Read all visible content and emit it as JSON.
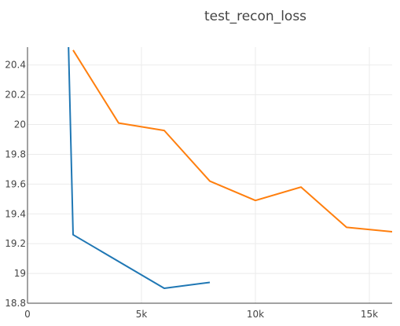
{
  "chart_data": {
    "type": "line",
    "title": "test_recon_loss",
    "xlabel": "",
    "ylabel": "",
    "xlim": [
      0,
      16000
    ],
    "ylim": [
      18.8,
      20.52
    ],
    "grid": true,
    "x_ticks": [
      0,
      5000,
      10000,
      15000
    ],
    "x_tick_labels": [
      "0",
      "5k",
      "10k",
      "15k"
    ],
    "y_ticks": [
      18.8,
      19,
      19.2,
      19.4,
      19.6,
      19.8,
      20,
      20.2,
      20.4
    ],
    "y_tick_labels": [
      "18.8",
      "19",
      "19.2",
      "19.4",
      "19.6",
      "19.8",
      "20",
      "20.2",
      "20.4"
    ],
    "series": [
      {
        "color": "#1f77b4",
        "x": [
          1800,
          2000,
          6000,
          8000
        ],
        "y": [
          20.52,
          19.26,
          18.9,
          18.94
        ]
      },
      {
        "color": "#ff7f0e",
        "x": [
          2000,
          4000,
          6000,
          8000,
          10000,
          12000,
          14000,
          16000
        ],
        "y": [
          20.5,
          20.01,
          19.96,
          19.62,
          19.49,
          19.58,
          19.31,
          19.28
        ]
      }
    ]
  }
}
